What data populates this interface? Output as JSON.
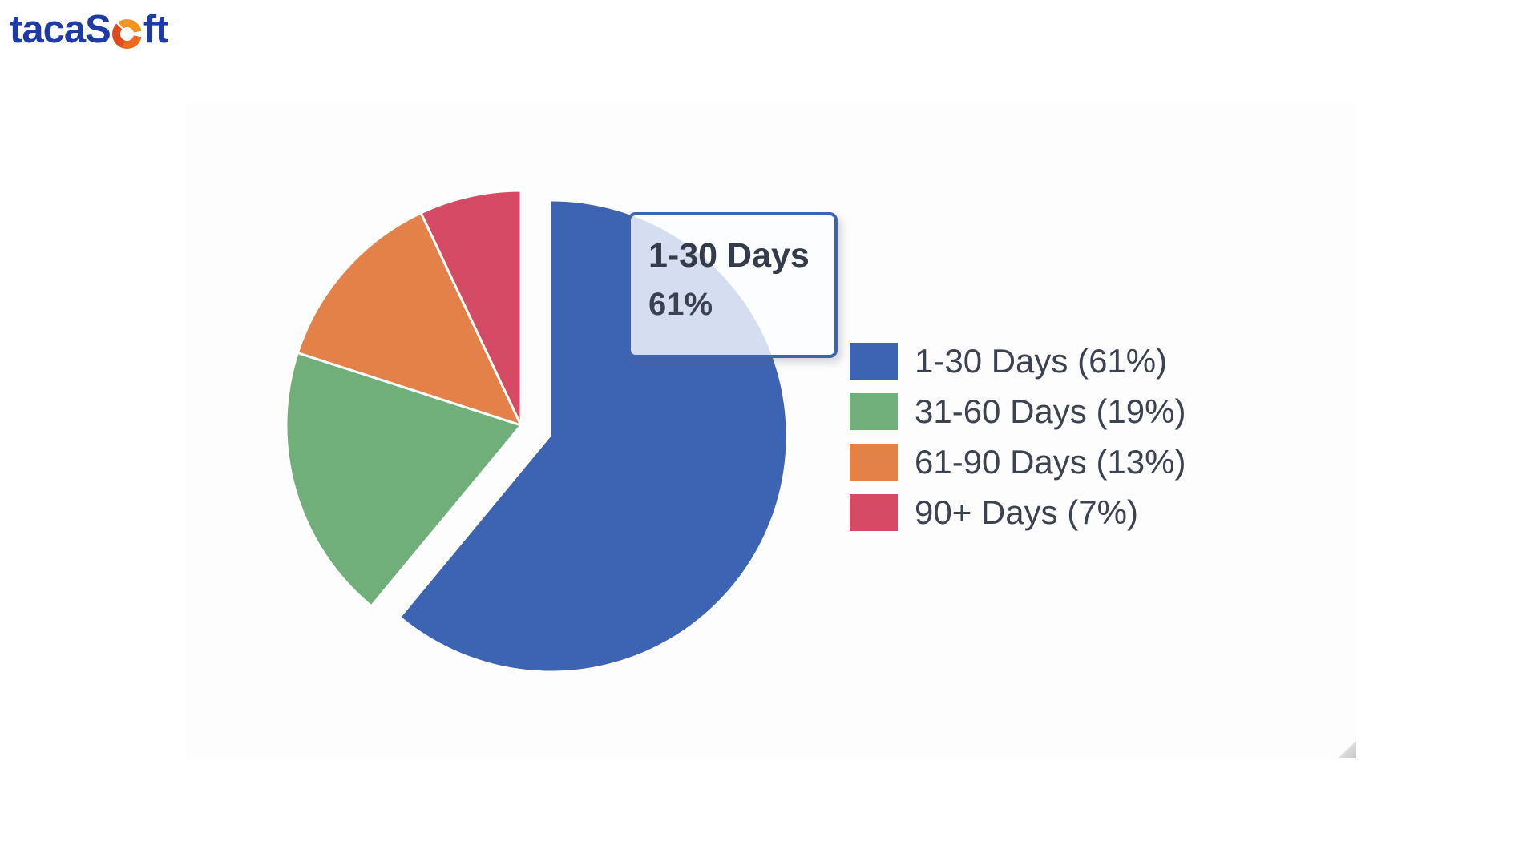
{
  "logo": {
    "name": "tacaSoft",
    "prefix": "tacaS",
    "suffix": "ft",
    "icon": "pie-donut-icon",
    "colors": {
      "text": "#1e3aa5",
      "icon_orange": "#f5941f",
      "icon_mid": "#ec6a1f",
      "icon_red": "#e04a1f"
    }
  },
  "chart_data": {
    "type": "pie",
    "labels": [
      "1-30 Days",
      "31-60 Days",
      "61-90 Days",
      "90+ Days"
    ],
    "values": [
      61,
      19,
      13,
      7
    ],
    "unit": "percent",
    "colors": [
      "#3d63b3",
      "#71af7a",
      "#e38148",
      "#d54a64"
    ],
    "start_angle_deg": 0,
    "direction": "clockwise",
    "exploded_slice": "1-30 Days",
    "legend_position": "right",
    "grid": false
  },
  "tooltip": {
    "title": "1-30 Days",
    "value": "61%"
  },
  "legend": {
    "items": [
      {
        "label": "1-30 Days (61%)"
      },
      {
        "label": "31-60 Days (19%)"
      },
      {
        "label": "61-90 Days (13%)"
      },
      {
        "label": "90+ Days (7%)"
      }
    ]
  }
}
